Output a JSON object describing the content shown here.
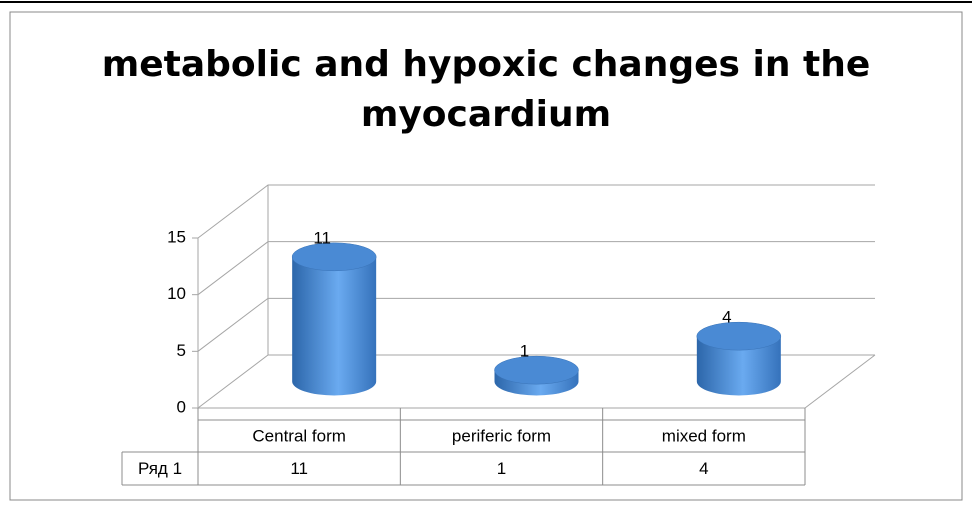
{
  "chart_data": {
    "type": "bar3d",
    "title": "metabolic and hypoxic changes in the myocardium",
    "categories": [
      "Central form",
      "periferic form",
      "mixed form"
    ],
    "series": [
      {
        "name": "Ряд 1",
        "color": "#4a8ad4",
        "values": [
          11,
          1,
          4
        ]
      }
    ],
    "ylim": [
      0,
      15
    ],
    "yticks": [
      0,
      5,
      10,
      15
    ],
    "grid": true,
    "data_table": true
  }
}
